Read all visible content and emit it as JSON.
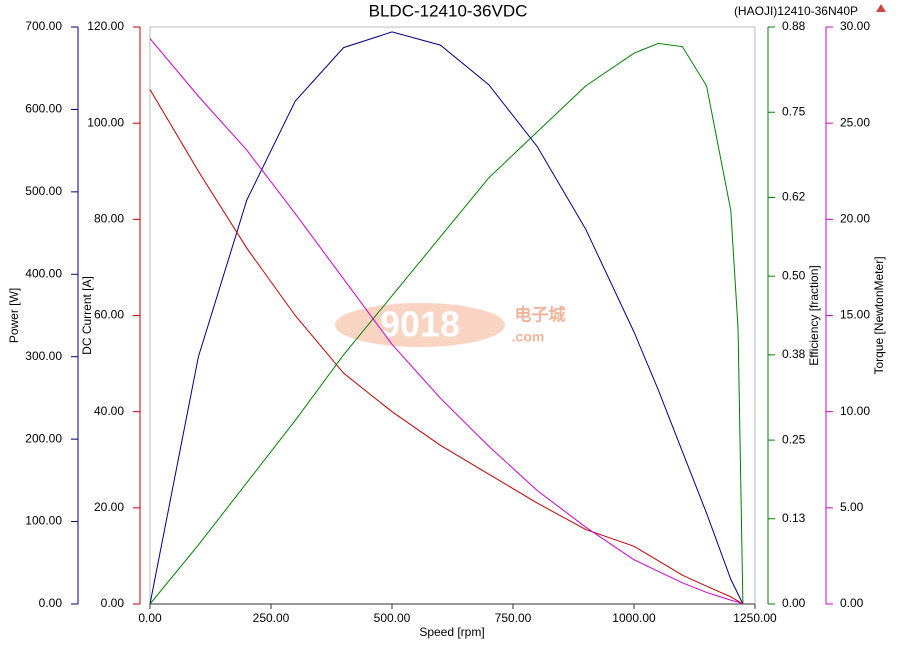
{
  "chart_data": {
    "type": "line",
    "title": "BLDC-12410-36VDC",
    "subtitle": "(HAOJI)12410-36N40P",
    "watermark": [
      "9018",
      "电子城",
      ".com"
    ],
    "x_label": "Speed [rpm]",
    "xlim": [
      0,
      1250
    ],
    "xticks": [
      {
        "value": 0,
        "label": "0.00"
      },
      {
        "value": 250,
        "label": "250.00"
      },
      {
        "value": 500,
        "label": "500.00"
      },
      {
        "value": 750,
        "label": "750.00"
      },
      {
        "value": 1000,
        "label": "1000.00"
      },
      {
        "value": 1250,
        "label": "1250.00"
      }
    ],
    "axes": [
      {
        "label": "Power [W]",
        "color": "#000080",
        "side": "left",
        "lim": [
          0,
          700
        ],
        "ticks": [
          {
            "value": 0,
            "label": "0.00"
          },
          {
            "value": 100,
            "label": "100.00"
          },
          {
            "value": 200,
            "label": "200.00"
          },
          {
            "value": 300,
            "label": "300.00"
          },
          {
            "value": 400,
            "label": "400.00"
          },
          {
            "value": 500,
            "label": "500.00"
          },
          {
            "value": 600,
            "label": "600.00"
          },
          {
            "value": 700,
            "label": "700.00"
          }
        ]
      },
      {
        "label": "DC Current [A]",
        "color": "#c00000",
        "side": "left",
        "lim": [
          0,
          120
        ],
        "ticks": [
          {
            "value": 0,
            "label": "0.00"
          },
          {
            "value": 20,
            "label": "20.00"
          },
          {
            "value": 40,
            "label": "40.00"
          },
          {
            "value": 60,
            "label": "60.00"
          },
          {
            "value": 80,
            "label": "80.00"
          },
          {
            "value": 100,
            "label": "100.00"
          },
          {
            "value": 120,
            "label": "120.00"
          }
        ]
      },
      {
        "label": "Efficiency [fraction]",
        "color": "#008000",
        "side": "right",
        "lim": [
          0,
          0.88
        ],
        "ticks": [
          {
            "value": 0,
            "label": "0.00"
          },
          0.13,
          0.25,
          0.38,
          {
            "value": 0.5,
            "label": "0.50"
          },
          0.62,
          0.75,
          0.88
        ]
      },
      {
        "label": "Torque [NewtonMeter]",
        "color": "#cc00cc",
        "side": "right",
        "lim": [
          0,
          30
        ],
        "ticks": [
          {
            "value": 0,
            "label": "0.00"
          },
          {
            "value": 5,
            "label": "5.00"
          },
          {
            "value": 10,
            "label": "10.00"
          },
          {
            "value": 15,
            "label": "15.00"
          },
          {
            "value": 20,
            "label": "20.00"
          },
          {
            "value": 25,
            "label": "25.00"
          },
          {
            "value": 30,
            "label": "30.00"
          }
        ]
      }
    ],
    "x": [
      0,
      100,
      200,
      300,
      400,
      500,
      600,
      700,
      800,
      900,
      1000,
      1050,
      1100,
      1150,
      1200,
      1215,
      1225
    ],
    "series": [
      {
        "axis": 0,
        "color": "#000080",
        "values": [
          0,
          300,
          490,
          610,
          675,
          694,
          678,
          630,
          555,
          455,
          330,
          260,
          185,
          110,
          30,
          12,
          0
        ]
      },
      {
        "axis": 1,
        "color": "#c00000",
        "values": [
          107,
          90,
          74,
          60,
          48,
          40,
          33,
          27,
          21,
          15.5,
          12,
          9,
          6,
          3.7,
          1.5,
          0.6,
          0
        ]
      },
      {
        "axis": 2,
        "color": "#008000",
        "values": [
          0,
          0.09,
          0.185,
          0.28,
          0.38,
          0.47,
          0.56,
          0.65,
          0.72,
          0.79,
          0.84,
          0.855,
          0.85,
          0.79,
          0.6,
          0.42,
          0
        ]
      },
      {
        "axis": 3,
        "color": "#cc00cc",
        "values": [
          29.4,
          26.4,
          23.6,
          20.3,
          16.9,
          13.5,
          10.7,
          8.2,
          5.9,
          4.0,
          2.3,
          1.7,
          1.1,
          0.6,
          0.2,
          0.1,
          0
        ]
      }
    ]
  }
}
